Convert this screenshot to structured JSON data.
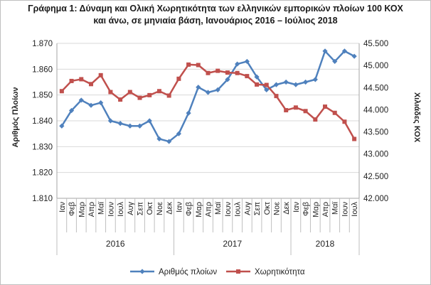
{
  "chart_data": {
    "type": "line",
    "title_line1": "Γράφημα 1: Δύναμη και Ολική Χωρητικότητα των ελληνικών εμπορικών πλοίων 100 ΚΟΧ",
    "title_line2": "και άνω, σε μηνιαία βάση, Ιανουάριος  2016 – Ιούλιος  2018",
    "ylabel_left": "Αριθμός Πλοίων",
    "ylabel_right": "Χιλιάδες ΚΟΧ",
    "ylim_left": [
      1810,
      1870
    ],
    "ylim_right": [
      42000,
      45500
    ],
    "yticks_left": [
      "1.810",
      "1.820",
      "1.830",
      "1.840",
      "1.850",
      "1.860",
      "1.870"
    ],
    "yticks_right": [
      "42.000",
      "42.500",
      "43.000",
      "43.500",
      "44.000",
      "44.500",
      "45.000",
      "45.500"
    ],
    "grid": true,
    "legend_position": "bottom",
    "categories": [
      "Ιαν",
      "Φεβ",
      "Μαρ",
      "Απρ",
      "Μαϊ",
      "Ιουν",
      "Ιουλ",
      "Αυγ",
      "Σεπ",
      "Οκτ",
      "Νοε",
      "Δεκ",
      "Ιαν",
      "Φεβ",
      "Μαρ",
      "Απρ",
      "Μαϊ",
      "Ιουν",
      "Ιουλ",
      "Αυγ",
      "Σεπ",
      "Οκτ",
      "Νοε",
      "Δεκ",
      "Ιαν",
      "Φεβ",
      "Μαρ",
      "Απρ",
      "Μαϊ",
      "Ιουν",
      "Ιουλ"
    ],
    "year_groups": [
      {
        "label": "2016",
        "start": 0,
        "end": 11
      },
      {
        "label": "2017",
        "start": 12,
        "end": 23
      },
      {
        "label": "2018",
        "start": 24,
        "end": 30
      }
    ],
    "series": [
      {
        "name": "Αριθμός πλοίων",
        "axis": "left",
        "color": "#4f81bd",
        "marker": "diamond",
        "values": [
          1838,
          1844,
          1848,
          1846,
          1847,
          1840,
          1839,
          1838,
          1838,
          1840,
          1833,
          1832,
          1835,
          1843,
          1853,
          1851,
          1852,
          1856,
          1862,
          1863,
          1857,
          1852,
          1854,
          1855,
          1854,
          1855,
          1856,
          1867,
          1863,
          1867,
          1865
        ]
      },
      {
        "name": "Χωρητικότητα",
        "axis": "right",
        "color": "#c0504d",
        "marker": "square",
        "values": [
          44420,
          44650,
          44690,
          44580,
          44780,
          44400,
          44230,
          44400,
          44270,
          44330,
          44420,
          44320,
          44700,
          45020,
          45010,
          44830,
          44880,
          44840,
          44830,
          44760,
          44570,
          44560,
          44310,
          43990,
          44050,
          43970,
          43780,
          44070,
          43930,
          43730,
          43340
        ]
      }
    ]
  }
}
